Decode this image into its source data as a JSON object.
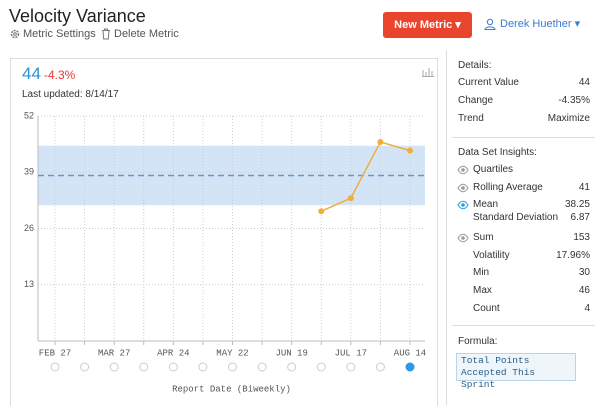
{
  "header": {
    "title": "Velocity Variance",
    "links": [
      "Metric Settings",
      "Delete Metric"
    ],
    "button": "New Metric",
    "user": "Derek Huether"
  },
  "summary": {
    "value": 44,
    "change": "-4.3%",
    "last_updated": "Last updated: 8/14/17"
  },
  "chart_data": {
    "type": "line",
    "x_label": "Report Date (Biweekly)",
    "categories": [
      "FEB 27",
      null,
      "MAR 27",
      null,
      "APR 24",
      null,
      "MAY 22",
      null,
      "JUN 19",
      null,
      "JUL 17",
      null,
      "AUG 14"
    ],
    "values": [
      null,
      null,
      null,
      null,
      null,
      null,
      null,
      null,
      null,
      30,
      33,
      46,
      44
    ],
    "color": "#f0ad3c",
    "mean_color": "#5b9bd5",
    "ylim": [
      0,
      52
    ],
    "yticks": [
      13,
      26,
      39,
      52
    ],
    "grid": true
  },
  "details": {
    "title": "Details:",
    "rows": [
      {
        "label": "Current Value",
        "value": 44
      },
      {
        "label": "Change",
        "value": "-4.35%"
      },
      {
        "label": "Trend",
        "value": "Maximize"
      }
    ]
  },
  "insights": {
    "title": "Data Set Insights:",
    "rows": [
      {
        "label": "Quartiles",
        "eye": "off"
      },
      {
        "label": "Rolling Average",
        "value": 41,
        "eye": "off"
      },
      {
        "label": "Mean",
        "value": 38.25,
        "eye": "on"
      },
      {
        "label": "Standard Deviation",
        "value": 6.87
      },
      {
        "label": "Sum",
        "value": 153,
        "eye": "off"
      },
      {
        "label": "Volatility",
        "value": "17.96%"
      },
      {
        "label": "Min",
        "value": 30
      },
      {
        "label": "Max",
        "value": 46
      },
      {
        "label": "Count",
        "value": 4
      }
    ]
  },
  "formula": {
    "title": "Formula:",
    "text": "Total Points Accepted This Sprint"
  }
}
